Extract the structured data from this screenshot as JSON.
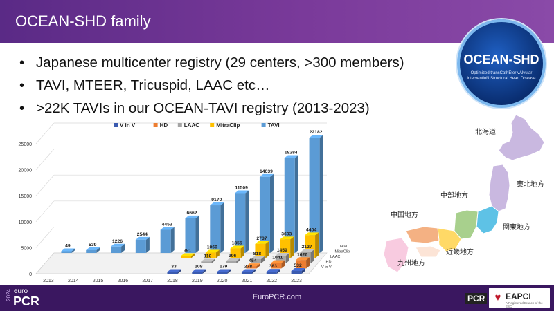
{
  "header": {
    "title": "OCEAN-SHD family"
  },
  "bullets": [
    "Japanese multicenter registry (29 centers, >300 members)",
    "TAVI, MTEER, Tricuspid, LAAC etc…",
    ">22K TAVIs in our OCEAN-TAVI registry (2013-2023)"
  ],
  "logo": {
    "title": "OCEAN-SHD",
    "subtitle": "Optimized transCathEter vAlvular interventioN Structural Heart Disease"
  },
  "chart_data": {
    "type": "bar",
    "subtype": "3d-grouped-depth",
    "categories": [
      "2013",
      "2014",
      "2015",
      "2016",
      "2017",
      "2018",
      "2019",
      "2020",
      "2021",
      "2022",
      "2023"
    ],
    "series": [
      {
        "name": "V in V",
        "color": "#3b5bb0",
        "values": [
          null,
          null,
          null,
          null,
          null,
          33,
          108,
          179,
          278,
          383,
          532
        ]
      },
      {
        "name": "HD",
        "color": "#ed7d31",
        "values": [
          null,
          null,
          null,
          null,
          null,
          null,
          null,
          null,
          454,
          1041,
          1626
        ]
      },
      {
        "name": "LAAC",
        "color": "#a5a5a5",
        "values": [
          null,
          null,
          null,
          null,
          null,
          null,
          110,
          396,
          818,
          1459,
          2127
        ]
      },
      {
        "name": "MitraClip",
        "color": "#ffc000",
        "values": [
          null,
          null,
          null,
          null,
          null,
          391,
          1060,
          1855,
          2737,
          3603,
          4404
        ]
      },
      {
        "name": "TAVI",
        "color": "#5b9bd5",
        "values": [
          49,
          539,
          1226,
          2544,
          4453,
          6662,
          9170,
          11509,
          14639,
          18284,
          22182
        ]
      }
    ],
    "depth_labels": [
      "TAVI",
      "MitraClip",
      "LAAC",
      "HD",
      "V in V"
    ],
    "yticks": [
      "0",
      "5000",
      "10000",
      "15000",
      "20000",
      "25000"
    ],
    "ylim": [
      0,
      25000
    ],
    "legend_position": "top",
    "grid": true
  },
  "map": {
    "regions": [
      "北海道",
      "東北地方",
      "中部地方",
      "関東地方",
      "中国地方",
      "近畿地方",
      "九州地方"
    ]
  },
  "footer": {
    "year": "2024",
    "euro": "euro",
    "pcr": "PCR",
    "url": "EuroPCR.com",
    "pcr_badge": "PCR",
    "eapci": "EAPCI",
    "eapci_small": "A Registered Branch of the ESC"
  }
}
